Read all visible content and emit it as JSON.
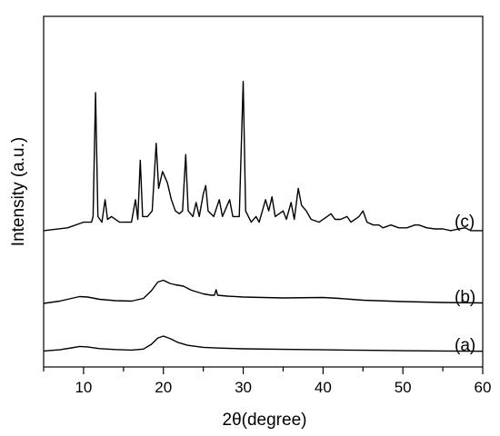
{
  "chart_data": {
    "type": "line",
    "title": "",
    "xlabel": "2θ(degree)",
    "ylabel": "Intensity (a.u.)",
    "xlim": [
      5,
      60
    ],
    "x_ticks": [
      10,
      20,
      30,
      40,
      50,
      60
    ],
    "y_ticks_shown": false,
    "grid": false,
    "legend": "none",
    "line_color": "#000000",
    "series": [
      {
        "name": "(a)",
        "points": [
          [
            5,
            0.3
          ],
          [
            7,
            0.55
          ],
          [
            8.5,
            0.95
          ],
          [
            9.5,
            1.25
          ],
          [
            10.5,
            1.15
          ],
          [
            12,
            0.8
          ],
          [
            14,
            0.6
          ],
          [
            16,
            0.5
          ],
          [
            17.5,
            0.7
          ],
          [
            18.5,
            1.7
          ],
          [
            19.3,
            3.0
          ],
          [
            20,
            3.4
          ],
          [
            20.8,
            2.9
          ],
          [
            21.8,
            2.1
          ],
          [
            23,
            1.5
          ],
          [
            25,
            1.05
          ],
          [
            27,
            0.9
          ],
          [
            30,
            0.75
          ],
          [
            35,
            0.65
          ],
          [
            40,
            0.55
          ],
          [
            45,
            0.45
          ],
          [
            50,
            0.35
          ],
          [
            55,
            0.3
          ],
          [
            60,
            0.25
          ]
        ]
      },
      {
        "name": "(b)",
        "points": [
          [
            5,
            0.4
          ],
          [
            7,
            0.9
          ],
          [
            8.5,
            1.5
          ],
          [
            9.5,
            1.9
          ],
          [
            10.5,
            1.8
          ],
          [
            12,
            1.3
          ],
          [
            14,
            1.0
          ],
          [
            16,
            0.9
          ],
          [
            17.5,
            1.5
          ],
          [
            18.5,
            3.2
          ],
          [
            19.3,
            5.1
          ],
          [
            20,
            5.5
          ],
          [
            20.8,
            4.8
          ],
          [
            21.5,
            4.5
          ],
          [
            22.5,
            4.2
          ],
          [
            23.5,
            3.3
          ],
          [
            25,
            2.5
          ],
          [
            26,
            2.2
          ],
          [
            26.4,
            2.2
          ],
          [
            26.6,
            3.4
          ],
          [
            26.8,
            2.2
          ],
          [
            28,
            2.0
          ],
          [
            30,
            1.8
          ],
          [
            35,
            1.6
          ],
          [
            40,
            1.7
          ],
          [
            42,
            1.5
          ],
          [
            45,
            1.1
          ],
          [
            50,
            0.8
          ],
          [
            55,
            0.6
          ],
          [
            60,
            0.5
          ]
        ]
      },
      {
        "name": "(c)",
        "points": [
          [
            5,
            0.5
          ],
          [
            8,
            1.0
          ],
          [
            10,
            2.0
          ],
          [
            11,
            2.0
          ],
          [
            11.2,
            3.0
          ],
          [
            11.5,
            25.0
          ],
          [
            11.8,
            3.0
          ],
          [
            12.3,
            2.0
          ],
          [
            12.7,
            6.0
          ],
          [
            13.0,
            2.5
          ],
          [
            13.5,
            3.0
          ],
          [
            14.5,
            2.0
          ],
          [
            16.0,
            2.0
          ],
          [
            16.5,
            6.0
          ],
          [
            16.8,
            2.5
          ],
          [
            17.1,
            13.0
          ],
          [
            17.4,
            3.0
          ],
          [
            18.0,
            3.0
          ],
          [
            18.6,
            4.0
          ],
          [
            19.1,
            16.0
          ],
          [
            19.4,
            8.0
          ],
          [
            19.9,
            11.0
          ],
          [
            20.5,
            9.0
          ],
          [
            21.0,
            6.0
          ],
          [
            21.5,
            4.0
          ],
          [
            22.0,
            3.5
          ],
          [
            22.4,
            4.0
          ],
          [
            22.8,
            14.0
          ],
          [
            23.1,
            4.0
          ],
          [
            23.7,
            3.0
          ],
          [
            24.1,
            5.5
          ],
          [
            24.5,
            3.0
          ],
          [
            25.0,
            7.0
          ],
          [
            25.3,
            8.5
          ],
          [
            25.6,
            4.0
          ],
          [
            26.3,
            3.0
          ],
          [
            27.0,
            6.0
          ],
          [
            27.4,
            3.0
          ],
          [
            28.3,
            6.0
          ],
          [
            28.7,
            3.0
          ],
          [
            29.5,
            3.0
          ],
          [
            30.0,
            27.0
          ],
          [
            30.3,
            4.0
          ],
          [
            31.0,
            2.0
          ],
          [
            31.6,
            3.0
          ],
          [
            32.0,
            2.0
          ],
          [
            32.8,
            6.0
          ],
          [
            33.2,
            4.0
          ],
          [
            33.6,
            6.5
          ],
          [
            34.0,
            3.0
          ],
          [
            35.0,
            4.0
          ],
          [
            35.4,
            2.5
          ],
          [
            36.0,
            5.5
          ],
          [
            36.4,
            2.5
          ],
          [
            36.9,
            8.0
          ],
          [
            37.3,
            5.0
          ],
          [
            37.9,
            4.0
          ],
          [
            38.5,
            2.5
          ],
          [
            39.5,
            2.0
          ],
          [
            40.5,
            3.0
          ],
          [
            41.0,
            3.5
          ],
          [
            41.5,
            2.5
          ],
          [
            42.2,
            2.5
          ],
          [
            43.0,
            3.0
          ],
          [
            43.5,
            2.0
          ],
          [
            44.5,
            3.0
          ],
          [
            45.0,
            4.0
          ],
          [
            45.5,
            2.0
          ],
          [
            46.3,
            1.5
          ],
          [
            47.0,
            1.5
          ],
          [
            47.5,
            1.0
          ],
          [
            48.5,
            1.5
          ],
          [
            49.5,
            1.0
          ],
          [
            50.5,
            1.0
          ],
          [
            51.5,
            1.5
          ],
          [
            52.0,
            1.5
          ],
          [
            53.0,
            1.0
          ],
          [
            54.0,
            0.8
          ],
          [
            55.0,
            0.8
          ],
          [
            56.0,
            0.5
          ],
          [
            57.0,
            0.8
          ],
          [
            57.8,
            1.0
          ],
          [
            58.5,
            0.5
          ],
          [
            60.0,
            0.5
          ]
        ]
      }
    ]
  }
}
